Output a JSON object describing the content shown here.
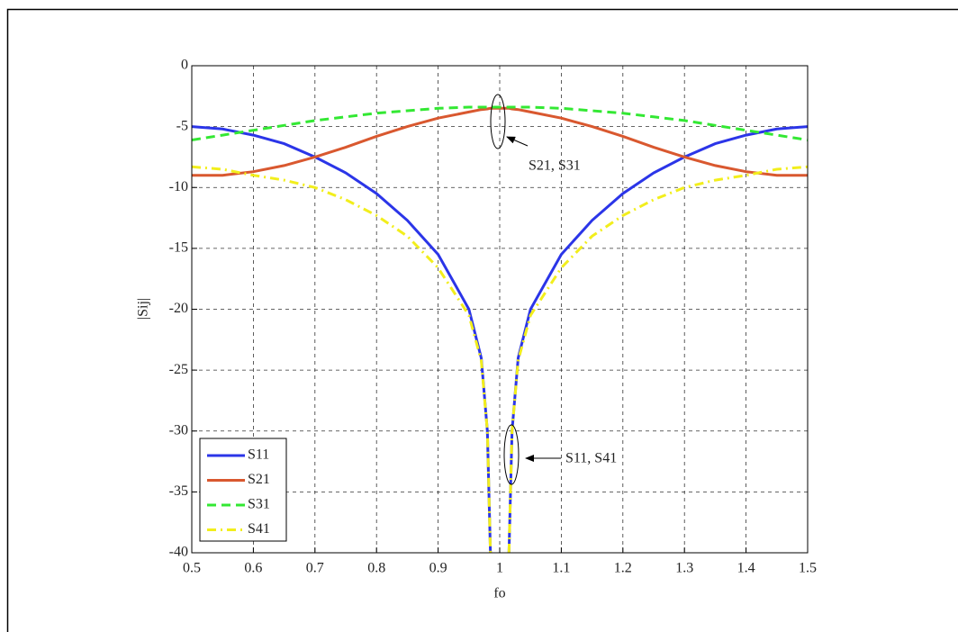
{
  "chart_data": {
    "type": "line",
    "x_label": "fo",
    "y_label": "|Sij|",
    "x": [
      0.5,
      0.55,
      0.6,
      0.65,
      0.7,
      0.75,
      0.8,
      0.85,
      0.9,
      0.95,
      0.97,
      0.98,
      0.985,
      1.0,
      1.015,
      1.02,
      1.03,
      1.05,
      1.1,
      1.15,
      1.2,
      1.25,
      1.3,
      1.35,
      1.4,
      1.45,
      1.5
    ],
    "series": [
      {
        "name": "S11",
        "color": "#2b35e8",
        "style": "solid",
        "values": [
          -5,
          -5.2,
          -5.7,
          -6.4,
          -7.5,
          -8.8,
          -10.5,
          -12.7,
          -15.5,
          -20,
          -24,
          -30,
          -40,
          null,
          -40,
          -30,
          -24,
          -20,
          -15.5,
          -12.7,
          -10.5,
          -8.8,
          -7.5,
          -6.4,
          -5.7,
          -5.2,
          -5
        ]
      },
      {
        "name": "S21",
        "color": "#d9582f",
        "style": "solid",
        "values": [
          -9,
          -9,
          -8.7,
          -8.2,
          -7.5,
          -6.7,
          -5.8,
          -5,
          -4.3,
          -3.8,
          -3.6,
          -3.55,
          -3.5,
          -3.5,
          -3.5,
          -3.55,
          -3.6,
          -3.8,
          -4.3,
          -5,
          -5.8,
          -6.7,
          -7.5,
          -8.2,
          -8.7,
          -9,
          -9
        ]
      },
      {
        "name": "S31",
        "color": "#33e833",
        "style": "dashed",
        "values": [
          -6.1,
          -5.7,
          -5.3,
          -4.9,
          -4.5,
          -4.2,
          -3.9,
          -3.7,
          -3.5,
          -3.4,
          -3.4,
          -3.4,
          -3.4,
          -3.4,
          -3.4,
          -3.4,
          -3.4,
          -3.4,
          -3.5,
          -3.7,
          -3.9,
          -4.2,
          -4.5,
          -4.9,
          -5.3,
          -5.7,
          -6.1
        ]
      },
      {
        "name": "S41",
        "color": "#f2ee1c",
        "style": "dashdot",
        "values": [
          -8.3,
          -8.5,
          -9,
          -9.4,
          -10,
          -11,
          -12.3,
          -14,
          -16.6,
          -20.5,
          -24.2,
          -30,
          -40,
          null,
          -40,
          -30,
          -24.2,
          -20.5,
          -16.6,
          -14,
          -12.3,
          -11,
          -10,
          -9.4,
          -9,
          -8.5,
          -8.3
        ]
      }
    ],
    "xlim": [
      0.5,
      1.5
    ],
    "xticks": [
      0.5,
      0.6,
      0.7,
      0.8,
      0.9,
      1,
      1.1,
      1.2,
      1.3,
      1.4,
      1.5
    ],
    "ylim": [
      -40,
      0
    ],
    "yticks": [
      0,
      -5,
      -10,
      -15,
      -20,
      -25,
      -30,
      -35,
      -40
    ],
    "grid": true,
    "legend": "lower left",
    "annotations": [
      "S21, S31",
      "S11, S41"
    ]
  }
}
